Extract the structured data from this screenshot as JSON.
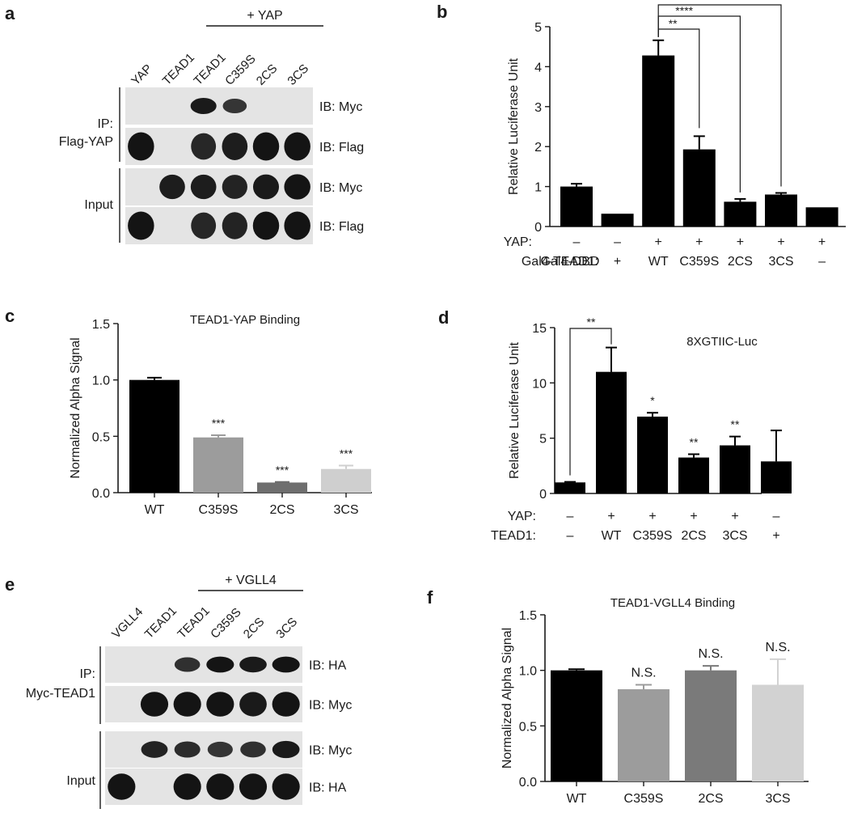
{
  "panels": {
    "a": {
      "letter": "a",
      "bracket_label": "+ YAP",
      "lanes": [
        "YAP",
        "TEAD1",
        "TEAD1",
        "C359S",
        "2CS",
        "3CS"
      ],
      "groups": [
        "IP:",
        "Flag-YAP",
        "Input"
      ],
      "blots": [
        "IB: Myc",
        "IB: Flag",
        "IB: Myc",
        "IB: Flag"
      ],
      "bands": [
        [
          0,
          0,
          0.95,
          0.65,
          0,
          0
        ],
        [
          1,
          0,
          0.8,
          0.9,
          1,
          1
        ],
        [
          0,
          0.9,
          0.9,
          0.85,
          0.95,
          1
        ],
        [
          1,
          0,
          0.8,
          0.85,
          1,
          1
        ]
      ]
    },
    "b": {
      "letter": "b",
      "ylabel": "Relative Luciferase Unit",
      "ylim": [
        0,
        5
      ],
      "yticks": [
        "0",
        "1",
        "2",
        "3",
        "4",
        "5"
      ],
      "rows": [
        {
          "label": "YAP:",
          "values": [
            "–",
            "–",
            "+",
            "+",
            "+",
            "+",
            "+"
          ]
        },
        {
          "label": "Gal4-TEAD1:",
          "values": [
            "Gal4-DBD",
            "+",
            "WT",
            "C359S",
            "2CS",
            "3CS",
            "–"
          ]
        }
      ],
      "sig": [
        "**",
        "****",
        "****"
      ]
    },
    "c": {
      "letter": "c",
      "title": "TEAD1-YAP Binding",
      "ylabel": "Normalized Alpha Signal",
      "ylim": [
        0,
        1.5
      ],
      "yticks": [
        "0.0",
        "0.5",
        "1.0",
        "1.5"
      ]
    },
    "d": {
      "letter": "d",
      "title": "8XGTIIC-Luc",
      "ylabel": "Relative Luciferase Unit",
      "ylim": [
        0,
        15
      ],
      "yticks": [
        "0",
        "5",
        "10",
        "15"
      ],
      "rows": [
        {
          "label": "YAP:",
          "values": [
            "–",
            "+",
            "+",
            "+",
            "+",
            "–"
          ]
        },
        {
          "label": "TEAD1:",
          "values": [
            "–",
            "WT",
            "C359S",
            "2CS",
            "3CS",
            "+"
          ]
        }
      ],
      "sig": "**"
    },
    "e": {
      "letter": "e",
      "bracket_label": "+ VGLL4",
      "lanes": [
        "VGLL4",
        "TEAD1",
        "TEAD1",
        "C359S",
        "2CS",
        "3CS"
      ],
      "groups": [
        "IP:",
        "Myc-TEAD1",
        "Input"
      ],
      "blots": [
        "IB: HA",
        "IB: Myc",
        "IB: Myc",
        "IB: HA"
      ],
      "bands": [
        [
          0,
          0,
          0.7,
          1,
          0.95,
          1
        ],
        [
          0,
          1,
          1,
          1,
          0.95,
          1
        ],
        [
          0,
          0.85,
          0.75,
          0.65,
          0.7,
          0.95
        ],
        [
          1,
          0,
          1,
          1,
          1,
          1
        ]
      ]
    },
    "f": {
      "letter": "f",
      "title": "TEAD1-VGLL4 Binding",
      "ylabel": "Normalized Alpha Signal",
      "ylim": [
        0,
        1.5
      ],
      "yticks": [
        "0.0",
        "0.5",
        "1.0",
        "1.5"
      ]
    }
  },
  "chart_data": [
    {
      "panel": "b",
      "type": "bar",
      "categories": [
        "Gal4-DBD",
        "+",
        "WT",
        "C359S",
        "2CS",
        "3CS",
        "–"
      ],
      "values": [
        1.0,
        0.32,
        4.28,
        1.93,
        0.62,
        0.8,
        0.48
      ],
      "errors": [
        0.07,
        0,
        0.38,
        0.33,
        0.07,
        0.04,
        0
      ],
      "colors": [
        "#000000",
        "#000000",
        "#000000",
        "#000000",
        "#000000",
        "#000000",
        "#000000"
      ],
      "ylabel": "Relative Luciferase Unit",
      "ylim": [
        0,
        5
      ]
    },
    {
      "panel": "c",
      "type": "bar",
      "categories": [
        "WT",
        "C359S",
        "2CS",
        "3CS"
      ],
      "values": [
        1.0,
        0.49,
        0.09,
        0.21
      ],
      "errors": [
        0.02,
        0.02,
        0.005,
        0.03
      ],
      "labels": [
        "",
        "***",
        "***",
        "***"
      ],
      "colors": [
        "#000000",
        "#9c9c9c",
        "#6e6e6e",
        "#cfcfcf"
      ],
      "title": "TEAD1-YAP Binding",
      "ylabel": "Normalized Alpha Signal",
      "ylim": [
        0,
        1.5
      ]
    },
    {
      "panel": "d",
      "type": "bar",
      "categories": [
        "WT",
        "C359S",
        "2CS",
        "3CS",
        "+",
        "–"
      ],
      "values": [
        1.0,
        11.0,
        6.95,
        3.25,
        4.35,
        2.9
      ],
      "errors": [
        0.05,
        2.2,
        0.35,
        0.3,
        0.8,
        2.8
      ],
      "labels": [
        "",
        "",
        "*",
        "**",
        "**",
        ""
      ],
      "colors": [
        "#000000",
        "#000000",
        "#000000",
        "#000000",
        "#000000",
        "#000000"
      ],
      "title": "8XGTIIC-Luc",
      "ylabel": "Relative Luciferase Unit",
      "ylim": [
        0,
        15
      ]
    },
    {
      "panel": "f",
      "type": "bar",
      "categories": [
        "WT",
        "C359S",
        "2CS",
        "3CS"
      ],
      "values": [
        1.0,
        0.83,
        1.0,
        0.87
      ],
      "errors": [
        0.01,
        0.04,
        0.04,
        0.23
      ],
      "labels": [
        "",
        "N.S.",
        "N.S.",
        "N.S."
      ],
      "colors": [
        "#000000",
        "#9c9c9c",
        "#7a7a7a",
        "#d2d2d2"
      ],
      "title": "TEAD1-VGLL4 Binding",
      "ylabel": "Normalized Alpha Signal",
      "ylim": [
        0,
        1.5
      ]
    }
  ]
}
